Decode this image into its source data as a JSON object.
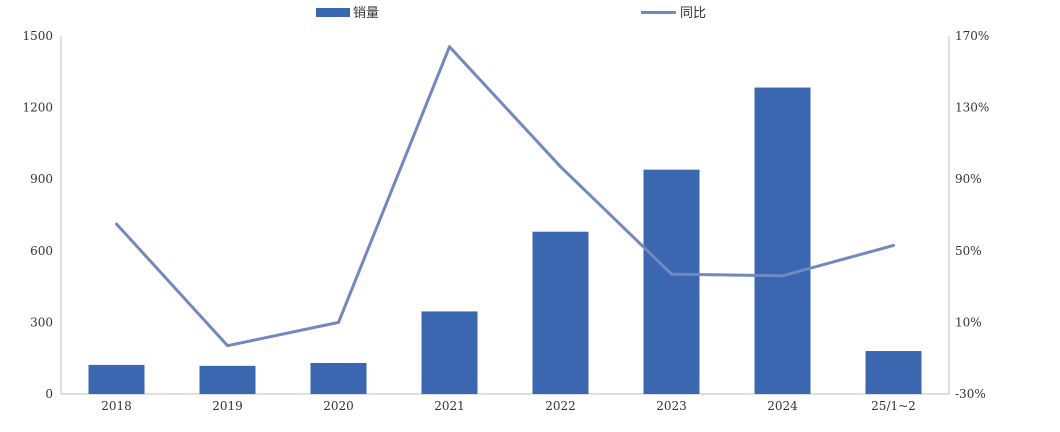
{
  "chart_data": {
    "type": "bar",
    "categories": [
      "2018",
      "2019",
      "2020",
      "2021",
      "2022",
      "2023",
      "2024",
      "25/1~2"
    ],
    "series": [
      {
        "name": "销量",
        "type": "bar",
        "axis": "left",
        "values": [
          122,
          118,
          130,
          346,
          680,
          940,
          1284,
          180
        ]
      },
      {
        "name": "同比",
        "type": "line",
        "axis": "right",
        "values": [
          65,
          -3,
          10,
          164,
          97,
          37,
          36,
          53
        ]
      }
    ],
    "title": "",
    "xlabel": "",
    "ylabel": "",
    "ylim": [
      0,
      1500
    ],
    "y_ticks": [
      "0",
      "300",
      "600",
      "900",
      "1200",
      "1500"
    ],
    "y_tick_values": [
      0,
      300,
      600,
      900,
      1200,
      1500
    ],
    "y2lim": [
      -30,
      170
    ],
    "y2_ticks": [
      "-30%",
      "10%",
      "50%",
      "90%",
      "130%",
      "170%"
    ],
    "y2_tick_values": [
      -30,
      10,
      50,
      90,
      130,
      170
    ],
    "grid": false,
    "legend": "top-center",
    "colors": {
      "bar": "#3b66b0",
      "line": "#7289bd",
      "axis": "#bfbfbf"
    }
  }
}
